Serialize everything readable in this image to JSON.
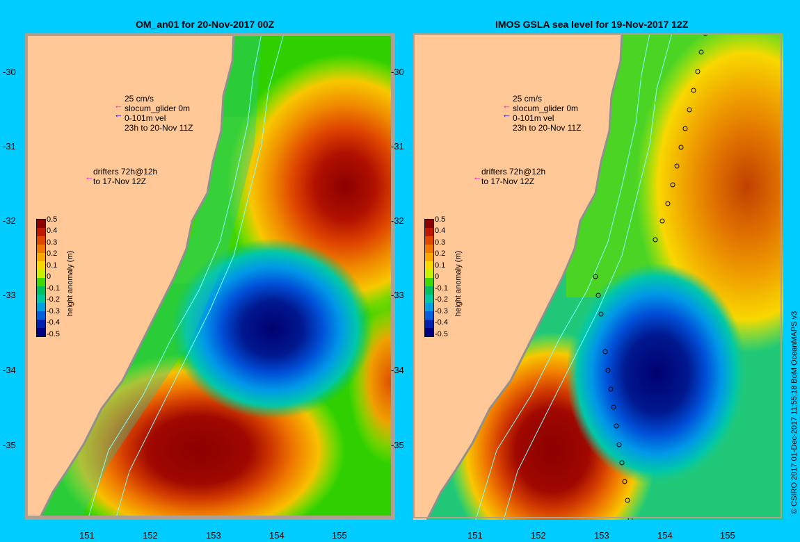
{
  "panels": [
    {
      "title": "OM_an01 for 20-Nov-2017 00Z",
      "legend": {
        "scale_label": "25 cm/s",
        "glider_label": "slocum_glider 0m",
        "vel_label": "0-101m vel",
        "time_label": "23h to 20-Nov 11Z",
        "drifters_label": "drifters 72h@12h",
        "drifters_time": "to 17-Nov 12Z"
      }
    },
    {
      "title": "IMOS GSLA sea level  for 19-Nov-2017 12Z",
      "legend": {
        "scale_label": "25 cm/s",
        "glider_label": "slocum_glider 0m",
        "vel_label": "0-101m vel",
        "time_label": "23h to 20-Nov 11Z",
        "drifters_label": "drifters 72h@12h",
        "drifters_time": "to 17-Nov 12Z"
      }
    }
  ],
  "y_ticks": [
    "-30",
    "-31",
    "-32",
    "-33",
    "-34",
    "-35"
  ],
  "x_ticks": [
    "151",
    "152",
    "153",
    "154",
    "155"
  ],
  "colorbar": {
    "title": "height anomaly (m)",
    "labels": [
      "0.5",
      "0.4",
      "0.3",
      "0.2",
      "0.1",
      "0",
      "-0.1",
      "-0.2",
      "-0.3",
      "-0.4",
      "-0.5"
    ],
    "colors": [
      "#8b0000",
      "#c01800",
      "#e04800",
      "#f07800",
      "#f8a800",
      "#f8d800",
      "#c8f000",
      "#40d800",
      "#00c060",
      "#00c8a0",
      "#00a0e0",
      "#0060e0",
      "#0020b0",
      "#000080"
    ]
  },
  "colors": {
    "background": "#00ccff",
    "land": "#ffc896",
    "arrow_magenta": "#ff00ff",
    "arrow_blue": "#0000ff"
  },
  "credit": "© CSIRO 2017   01-Dec-2017 11:55:18 BoM OceanMAPS v3"
}
